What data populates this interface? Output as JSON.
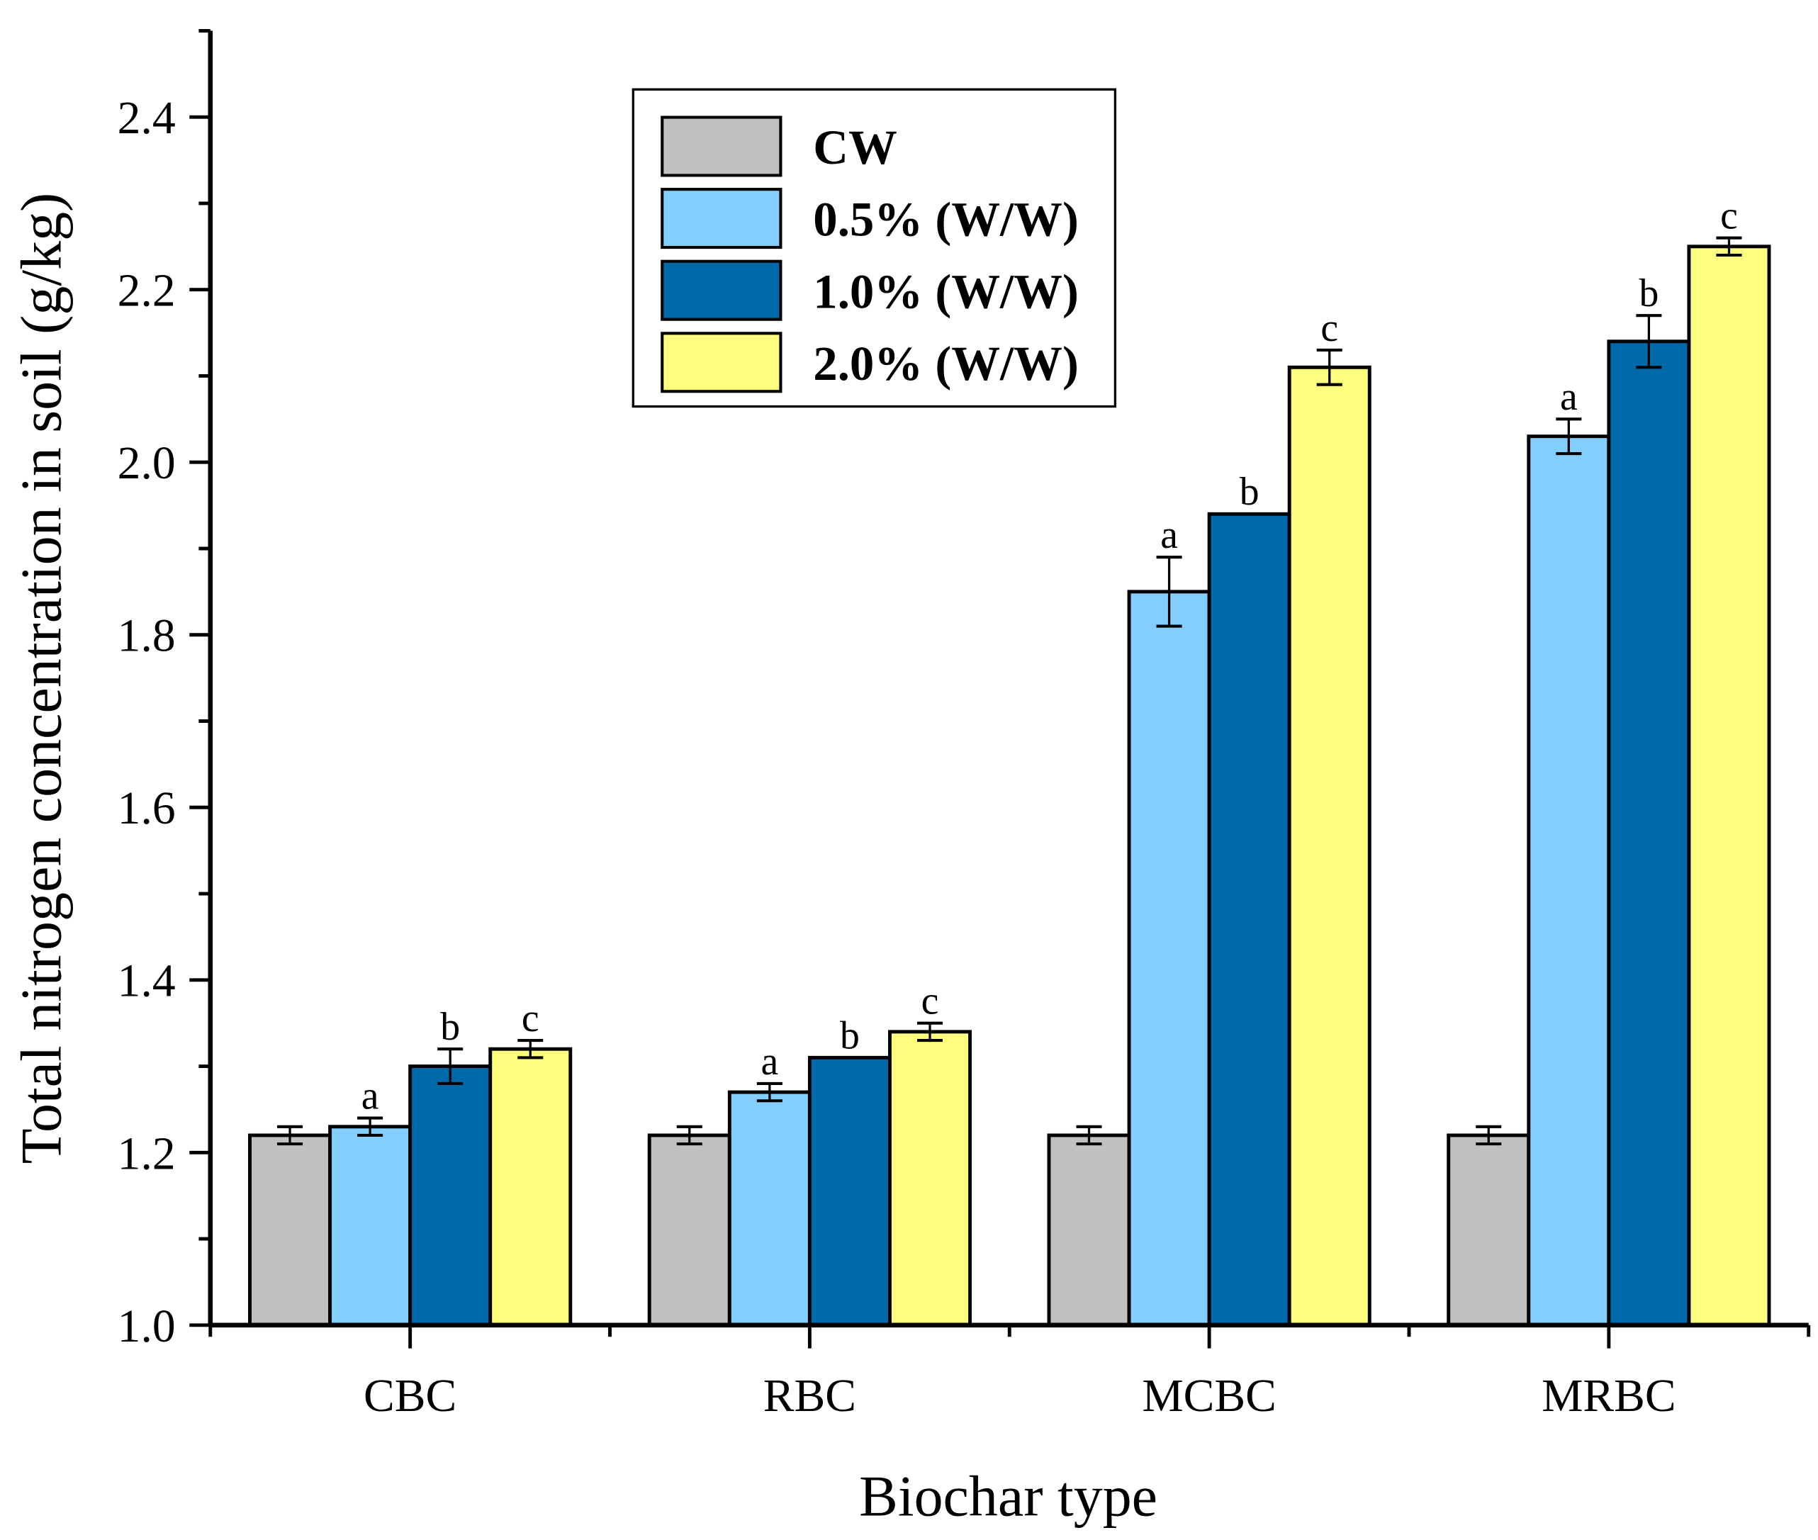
{
  "chart_data": {
    "type": "bar",
    "title": "",
    "xlabel": "Biochar type",
    "ylabel": "Total nitrogen concentration in soil (g/kg)",
    "ylim": [
      1.0,
      2.5
    ],
    "yticks": [
      "1.0",
      "1.2",
      "1.4",
      "1.6",
      "1.8",
      "2.0",
      "2.2",
      "2.4"
    ],
    "categories": [
      "CBC",
      "RBC",
      "MCBC",
      "MRBC"
    ],
    "legend_position": "top-center",
    "series": [
      {
        "name": "CW",
        "color": "#c0c0c0",
        "values": [
          1.22,
          1.22,
          1.22,
          1.22
        ],
        "errors": [
          0.01,
          0.01,
          0.01,
          0.01
        ],
        "labels": [
          "",
          "",
          "",
          ""
        ]
      },
      {
        "name": "0.5% (W/W)",
        "color": "#84cefe",
        "values": [
          1.23,
          1.27,
          1.85,
          2.03
        ],
        "errors": [
          0.01,
          0.01,
          0.04,
          0.02
        ],
        "labels": [
          "a",
          "a",
          "a",
          "a"
        ]
      },
      {
        "name": "1.0% (W/W)",
        "color": "#0069aa",
        "values": [
          1.3,
          1.31,
          1.94,
          2.14
        ],
        "errors": [
          0.02,
          0,
          0,
          0.03
        ],
        "labels": [
          "b",
          "b",
          "b",
          "b"
        ]
      },
      {
        "name": "2.0% (W/W)",
        "color": "#fefe7e",
        "values": [
          1.32,
          1.34,
          2.11,
          2.25
        ],
        "errors": [
          0.01,
          0.01,
          0.02,
          0.01
        ],
        "labels": [
          "c",
          "c",
          "c",
          "c"
        ]
      }
    ]
  }
}
